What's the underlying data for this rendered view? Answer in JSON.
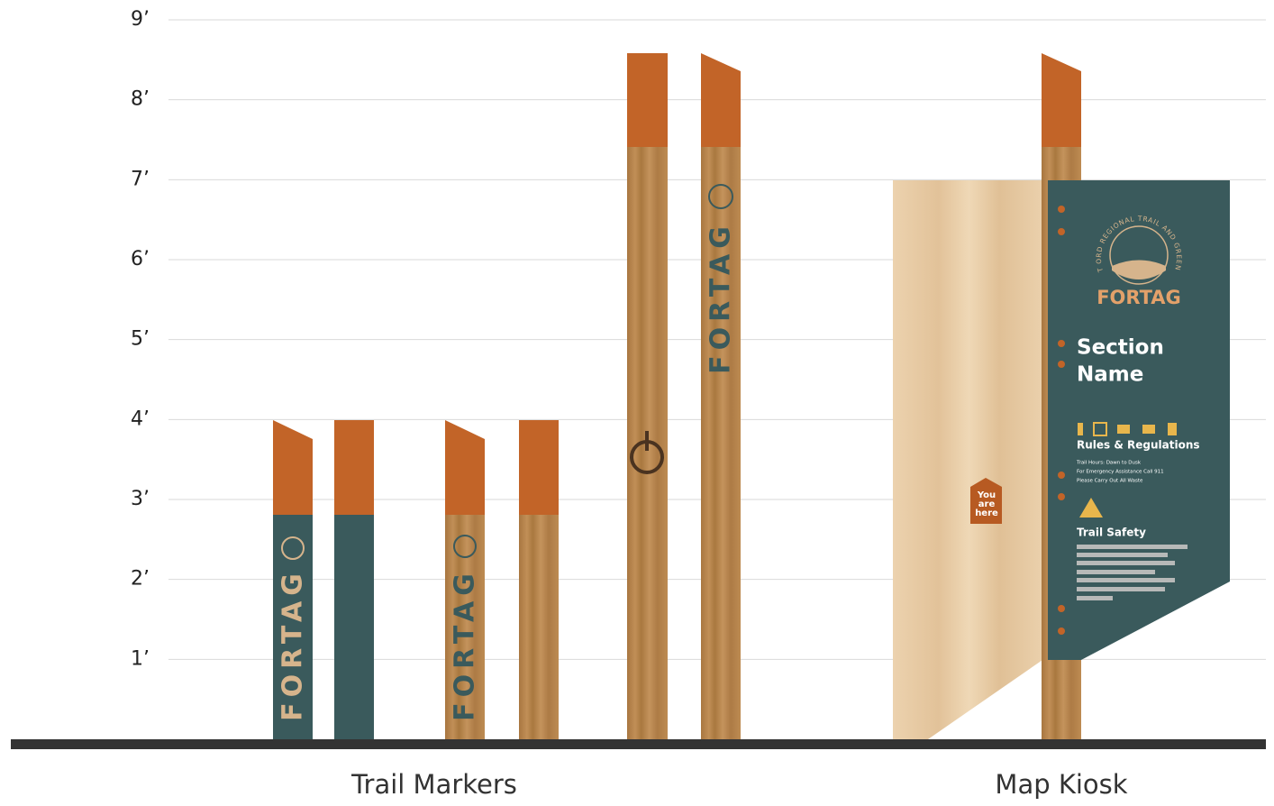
{
  "scale": {
    "labels": [
      "1’",
      "2’",
      "3’",
      "4’",
      "5’",
      "6’",
      "7’",
      "8’",
      "9’"
    ]
  },
  "trail_markers": {
    "caption": "Trail Markers",
    "post_texts": [
      "FORTAG",
      "FORTAG",
      "FORTAG"
    ]
  },
  "map_kiosk": {
    "caption": "Map Kiosk",
    "logo_ring": "FORT ORD REGIONAL TRAIL AND GREENWAY",
    "logo_name": "FORTAG",
    "section_name": [
      "Section",
      "Name"
    ],
    "rules_title": "Rules & Regulations",
    "rules": [
      "Trail Hours: Dawn to Dusk",
      "For Emergency Assistance Call 911",
      "Please Carry Out All Waste"
    ],
    "safety_title": "Trail Safety",
    "you_are_here": [
      "You",
      "are",
      "here"
    ]
  }
}
